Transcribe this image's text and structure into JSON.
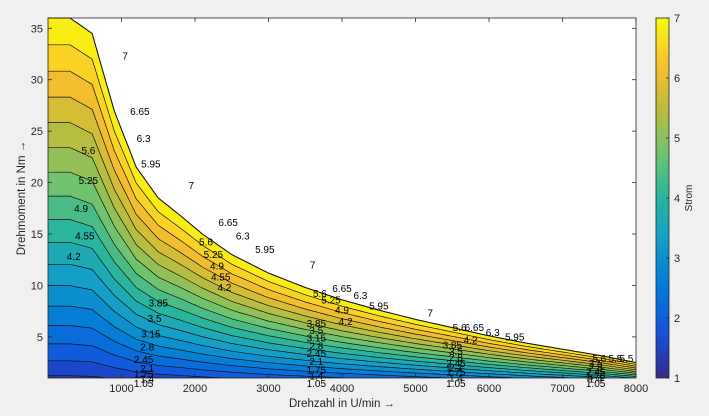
{
  "chart_data": {
    "type": "contour",
    "title": "",
    "xlabel": "Drehzahl in U/min →",
    "ylabel": "Drehmoment in Nm →",
    "xlim": [
      0,
      8000
    ],
    "ylim": [
      1,
      36
    ],
    "xticks": [
      1000,
      2000,
      3000,
      4000,
      5000,
      6000,
      7000,
      8000
    ],
    "xtick_labels": [
      "1000",
      "2000",
      "3000",
      "4000",
      "5000",
      "6000",
      "7000",
      "8000"
    ],
    "yticks": [
      5,
      10,
      15,
      20,
      25,
      30,
      35
    ],
    "ytick_labels": [
      "5",
      "10",
      "15",
      "20",
      "25",
      "30",
      "35"
    ],
    "grid": false,
    "colormap": "parula",
    "colorbar": {
      "label": "Strom",
      "range": [
        1,
        7
      ],
      "ticks": [
        1,
        2,
        3,
        4,
        5,
        6,
        7
      ],
      "tick_labels": [
        "1",
        "2",
        "3",
        "4",
        "5",
        "6",
        "7"
      ]
    },
    "levels": [
      1.05,
      1.4,
      1.75,
      2.1,
      2.45,
      2.8,
      3.15,
      3.5,
      3.85,
      4.2,
      4.55,
      4.9,
      5.25,
      5.6,
      5.95,
      6.3,
      6.65,
      7
    ],
    "boundary": {
      "description": "torque limit curve",
      "x": [
        0,
        300,
        600,
        900,
        1200,
        1500,
        1800,
        2100,
        2500,
        3000,
        3500,
        4000,
        4500,
        5000,
        5500,
        6000,
        6500,
        7000,
        7500,
        8000
      ],
      "y": [
        36,
        36,
        34.5,
        27,
        21.5,
        18.5,
        16.8,
        15,
        13,
        11.2,
        9.8,
        8.6,
        7.6,
        6.7,
        5.9,
        5.1,
        4.4,
        3.8,
        3.2,
        2.5
      ]
    },
    "contour_labels": [
      {
        "text": "7",
        "x": 1050,
        "y": 32.3
      },
      {
        "text": "6.65",
        "x": 1250,
        "y": 26.9
      },
      {
        "text": "6.3",
        "x": 1300,
        "y": 24.3
      },
      {
        "text": "5.95",
        "x": 1400,
        "y": 21.8
      },
      {
        "text": "5.6",
        "x": 550,
        "y": 23.1
      },
      {
        "text": "5.25",
        "x": 550,
        "y": 20.2
      },
      {
        "text": "4.9",
        "x": 450,
        "y": 17.5
      },
      {
        "text": "4.55",
        "x": 500,
        "y": 14.8
      },
      {
        "text": "4.2",
        "x": 350,
        "y": 12.8
      },
      {
        "text": "7",
        "x": 1950,
        "y": 19.7
      },
      {
        "text": "6.65",
        "x": 2450,
        "y": 16.1
      },
      {
        "text": "6.3",
        "x": 2650,
        "y": 14.8
      },
      {
        "text": "5.95",
        "x": 2950,
        "y": 13.5
      },
      {
        "text": "5.6",
        "x": 2150,
        "y": 14.2
      },
      {
        "text": "5.25",
        "x": 2250,
        "y": 13.0
      },
      {
        "text": "4.9",
        "x": 2300,
        "y": 11.9
      },
      {
        "text": "4.55",
        "x": 2350,
        "y": 10.8
      },
      {
        "text": "4.2",
        "x": 2400,
        "y": 9.8
      },
      {
        "text": "3.85",
        "x": 1500,
        "y": 8.3
      },
      {
        "text": "3.5",
        "x": 1450,
        "y": 6.8
      },
      {
        "text": "3.15",
        "x": 1400,
        "y": 5.3
      },
      {
        "text": "2.8",
        "x": 1350,
        "y": 4.0
      },
      {
        "text": "2.45",
        "x": 1300,
        "y": 2.8
      },
      {
        "text": "2.1",
        "x": 1350,
        "y": 1.9
      },
      {
        "text": "1.75",
        "x": 1300,
        "y": 1.4
      },
      {
        "text": "1.4",
        "x": 1350,
        "y": 0.9
      },
      {
        "text": "1.05",
        "x": 1300,
        "y": 0.45
      },
      {
        "text": "7",
        "x": 3600,
        "y": 12.0
      },
      {
        "text": "6.65",
        "x": 4000,
        "y": 9.7
      },
      {
        "text": "6.3",
        "x": 4250,
        "y": 9.0
      },
      {
        "text": "5.95",
        "x": 4500,
        "y": 8.0
      },
      {
        "text": "5.6",
        "x": 3700,
        "y": 9.2
      },
      {
        "text": "5.25",
        "x": 3850,
        "y": 8.6
      },
      {
        "text": "4.9",
        "x": 4000,
        "y": 7.6
      },
      {
        "text": "4.2",
        "x": 4050,
        "y": 6.5
      },
      {
        "text": "3.85",
        "x": 3650,
        "y": 6.3
      },
      {
        "text": "3.5",
        "x": 3650,
        "y": 5.6
      },
      {
        "text": "3.15",
        "x": 3650,
        "y": 4.9
      },
      {
        "text": "2.8",
        "x": 3650,
        "y": 4.1
      },
      {
        "text": "2.45",
        "x": 3650,
        "y": 3.4
      },
      {
        "text": "2.1",
        "x": 3650,
        "y": 2.6
      },
      {
        "text": "1.75",
        "x": 3650,
        "y": 1.8
      },
      {
        "text": "1.4",
        "x": 3650,
        "y": 1.2
      },
      {
        "text": "1.05",
        "x": 3650,
        "y": 0.45
      },
      {
        "text": "7",
        "x": 5200,
        "y": 7.3
      },
      {
        "text": "5.6",
        "x": 5600,
        "y": 5.9
      },
      {
        "text": "6.65",
        "x": 5800,
        "y": 5.9
      },
      {
        "text": "6.3",
        "x": 6050,
        "y": 5.4
      },
      {
        "text": "5.95",
        "x": 6350,
        "y": 5.0
      },
      {
        "text": "3.85",
        "x": 5500,
        "y": 4.2
      },
      {
        "text": "4.2",
        "x": 5750,
        "y": 4.7
      },
      {
        "text": "3.5",
        "x": 5550,
        "y": 3.6
      },
      {
        "text": "2.8",
        "x": 5550,
        "y": 3.0
      },
      {
        "text": "2.45",
        "x": 5550,
        "y": 2.4
      },
      {
        "text": "2.1",
        "x": 5550,
        "y": 2.0
      },
      {
        "text": "1.75",
        "x": 5550,
        "y": 1.6
      },
      {
        "text": "1.4",
        "x": 5550,
        "y": 1.0
      },
      {
        "text": "1.05",
        "x": 5550,
        "y": 0.45
      },
      {
        "text": "5.6",
        "x": 7500,
        "y": 2.9
      },
      {
        "text": "5.5",
        "x": 7720,
        "y": 2.9
      },
      {
        "text": "5.5",
        "x": 7870,
        "y": 2.9
      },
      {
        "text": "3.5",
        "x": 7450,
        "y": 2.4
      },
      {
        "text": "2.8",
        "x": 7450,
        "y": 2.0
      },
      {
        "text": "2.45",
        "x": 7450,
        "y": 1.6
      },
      {
        "text": "1.75",
        "x": 7450,
        "y": 1.2
      },
      {
        "text": "1.4",
        "x": 7450,
        "y": 0.9
      },
      {
        "text": "1.05",
        "x": 7450,
        "y": 0.45
      }
    ]
  }
}
